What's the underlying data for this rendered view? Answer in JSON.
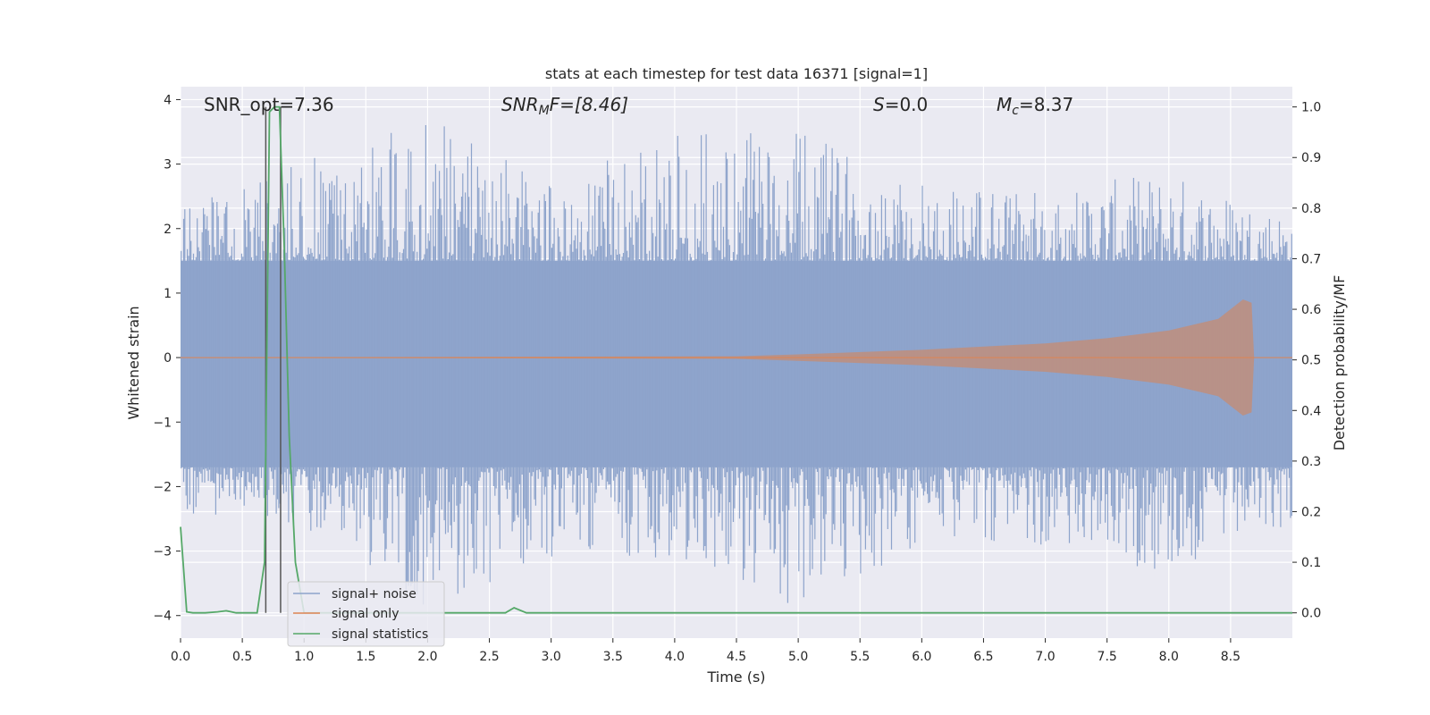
{
  "chart_data": {
    "type": "line",
    "title": "stats at each timestep for test data 16371 [signal=1]",
    "xlabel": "Time (s)",
    "ylabel_left": "Whitened strain",
    "ylabel_right": "Detection probability/MF",
    "xlim": [
      0.0,
      9.0
    ],
    "ylim_left": [
      -4.35,
      4.2
    ],
    "ylim_right": [
      -0.05,
      1.04
    ],
    "grid": true,
    "legend_position": "lower-left",
    "x_ticks": [
      "0.0",
      "0.5",
      "1.0",
      "1.5",
      "2.0",
      "2.5",
      "3.0",
      "3.5",
      "4.0",
      "4.5",
      "5.0",
      "5.5",
      "6.0",
      "6.5",
      "7.0",
      "7.5",
      "8.0",
      "8.5"
    ],
    "y_ticks_left": [
      "4",
      "3",
      "2",
      "1",
      "0",
      "−1",
      "−2",
      "−3",
      "−4"
    ],
    "y_ticks_right": [
      "1.0",
      "0.9",
      "0.8",
      "0.7",
      "0.6",
      "0.5",
      "0.4",
      "0.3",
      "0.2",
      "0.1",
      "0.0"
    ],
    "annotations": {
      "snr_opt": "SNR_opt=7.36",
      "snr_mf_prefix": "SNR",
      "snr_mf_sub": "M",
      "snr_mf_suffix": "F=[8.46]",
      "s_label": "S",
      "s_value": "=0.0",
      "mc_label": "M",
      "mc_sub": "c",
      "mc_value": "=8.37"
    },
    "vertical_lines_x": [
      0.69,
      0.81
    ],
    "noise_envelope": {
      "x": [
        0.0,
        1.0,
        2.0,
        3.0,
        4.0,
        5.0,
        6.0,
        7.0,
        8.0,
        9.0
      ],
      "upper_peaks": [
        2.3,
        3.1,
        3.8,
        2.7,
        3.5,
        3.5,
        2.8,
        2.6,
        2.9,
        2.2
      ],
      "lower_peaks": [
        -2.4,
        -2.7,
        -3.9,
        -3.1,
        -3.1,
        -4.0,
        -2.9,
        -2.9,
        -3.4,
        -2.6
      ],
      "typical_band": [
        -1.7,
        1.5
      ]
    },
    "signal_only": {
      "x": [
        0.0,
        4.5,
        5.0,
        6.0,
        7.0,
        7.5,
        8.0,
        8.4,
        8.6,
        8.67,
        8.69,
        9.0
      ],
      "amplitude": [
        0.0,
        0.02,
        0.05,
        0.12,
        0.22,
        0.3,
        0.42,
        0.6,
        0.9,
        0.85,
        0.0,
        0.0
      ]
    },
    "series": [
      {
        "name": "signal+ noise",
        "color": "#8da3cb"
      },
      {
        "name": "signal only",
        "color": "#dd8452"
      },
      {
        "name": "signal statistics",
        "color": "#55a868",
        "x": [
          0.0,
          0.05,
          0.1,
          0.2,
          0.3,
          0.37,
          0.45,
          0.55,
          0.62,
          0.68,
          0.72,
          0.76,
          0.8,
          0.84,
          0.88,
          0.93,
          1.0,
          2.5,
          2.63,
          2.7,
          2.8,
          3.0,
          9.0
        ],
        "values": [
          0.17,
          0.002,
          0.0,
          0.0,
          0.002,
          0.004,
          0.0,
          0.0,
          0.0,
          0.1,
          0.99,
          1.0,
          1.0,
          0.72,
          0.35,
          0.1,
          0.0,
          0.0,
          0.0,
          0.01,
          0.0,
          0.0,
          0.0
        ]
      }
    ]
  }
}
